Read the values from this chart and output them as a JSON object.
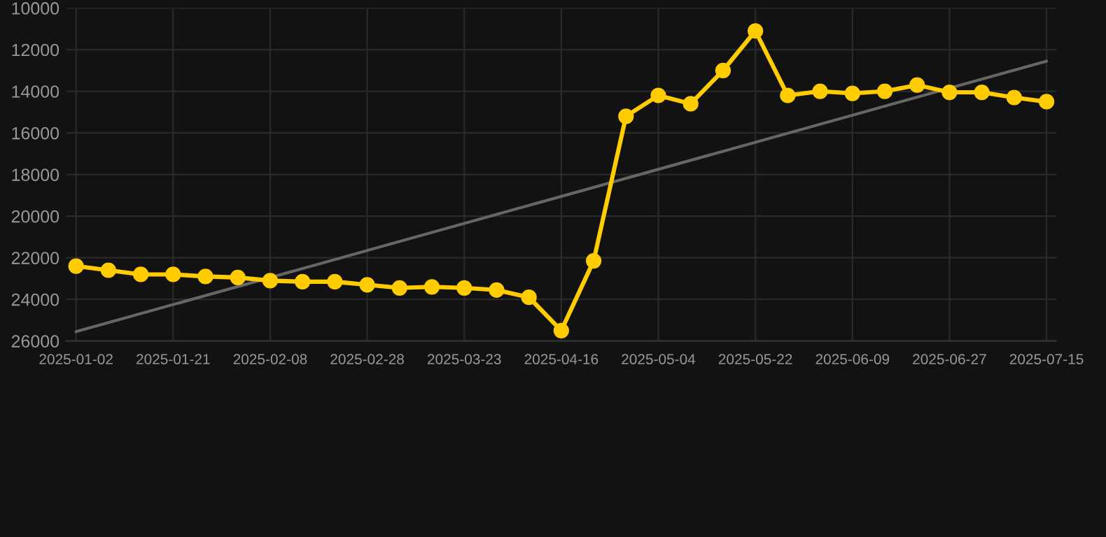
{
  "chart_data": {
    "type": "line",
    "categories": [
      "2025-01-02",
      null,
      null,
      "2025-01-21",
      null,
      null,
      "2025-02-08",
      null,
      null,
      "2025-02-28",
      null,
      null,
      "2025-03-23",
      null,
      null,
      "2025-04-16",
      null,
      null,
      "2025-05-04",
      null,
      null,
      "2025-05-22",
      null,
      null,
      "2025-06-09",
      null,
      null,
      "2025-06-27",
      null,
      null,
      "2025-07-15"
    ],
    "series": [
      {
        "color": "#ffcc00",
        "marker": "circle",
        "values": [
          22400,
          22600,
          22800,
          22800,
          22900,
          22950,
          23100,
          23150,
          23150,
          23300,
          23450,
          23400,
          23450,
          23550,
          23900,
          25500,
          22150,
          15200,
          14200,
          14600,
          13000,
          11100,
          14200,
          14000,
          14100,
          14000,
          13700,
          14050,
          14050,
          14300,
          14500
        ]
      },
      {
        "type": "line",
        "color": "#666666",
        "marker": "none",
        "values": [
          25550,
          null,
          null,
          null,
          null,
          null,
          null,
          null,
          null,
          null,
          null,
          null,
          null,
          null,
          null,
          null,
          null,
          null,
          null,
          null,
          null,
          null,
          null,
          null,
          null,
          null,
          null,
          null,
          null,
          null,
          12550
        ]
      }
    ],
    "ylim": [
      26000,
      10000
    ],
    "yticks": [
      10000,
      12000,
      14000,
      16000,
      18000,
      20000,
      22000,
      24000,
      26000
    ],
    "grid": true,
    "legend": false
  }
}
